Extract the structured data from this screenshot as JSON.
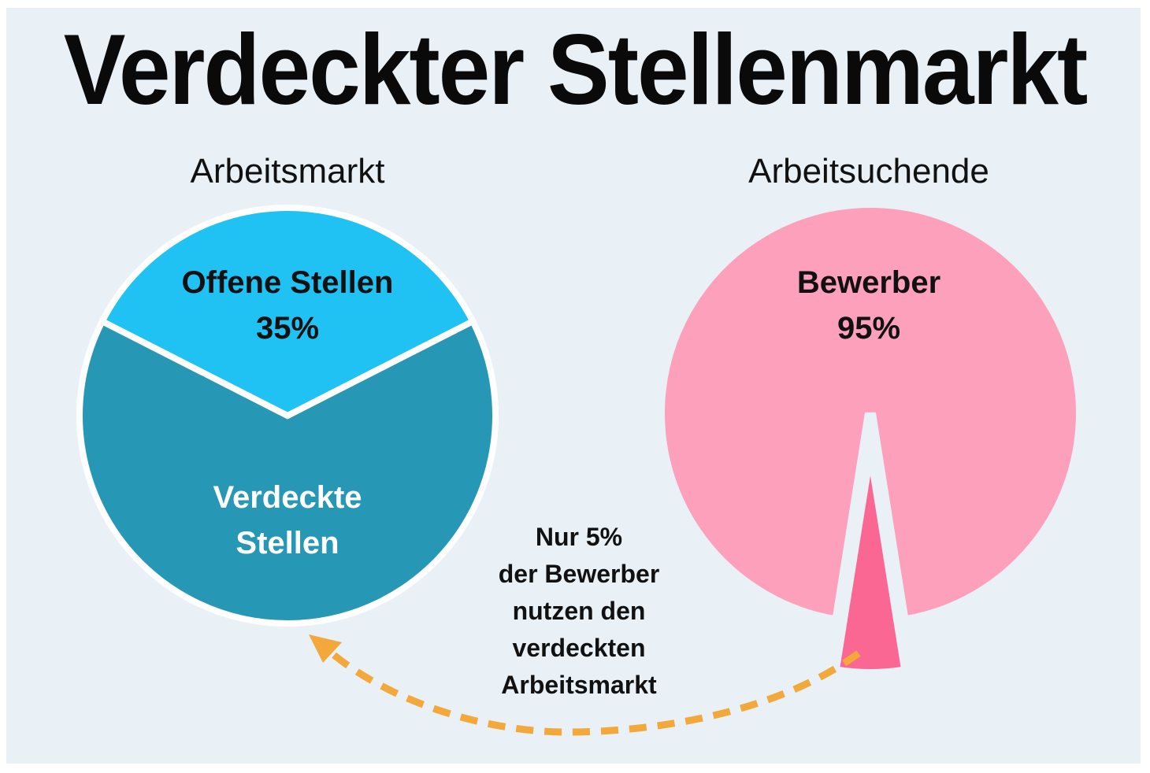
{
  "title": "Verdeckter Stellenmarkt",
  "chart_data": [
    {
      "type": "pie",
      "title": "Arbeitsmarkt",
      "slices": [
        {
          "label": "Offene Stellen",
          "value_label": "35%",
          "value": 35,
          "color": "#1fc2f2"
        },
        {
          "label": "Verdeckte Stellen",
          "value_label": "",
          "value": 65,
          "color": "#2697b4"
        }
      ]
    },
    {
      "type": "pie",
      "title": "Arbeitsuchende",
      "slices": [
        {
          "label": "Bewerber",
          "value_label": "95%",
          "value": 95,
          "color": "#fca0bb"
        },
        {
          "label": "",
          "value_label": "",
          "value": 5,
          "color": "#fb6793"
        }
      ]
    }
  ],
  "annotation": {
    "lines": [
      "Nur 5%",
      "der Bewerber",
      "nutzen den",
      "verdeckten",
      "Arbeitsmarkt"
    ],
    "arrow_color": "#f2a83b"
  },
  "background_color": "#e9f1f6"
}
